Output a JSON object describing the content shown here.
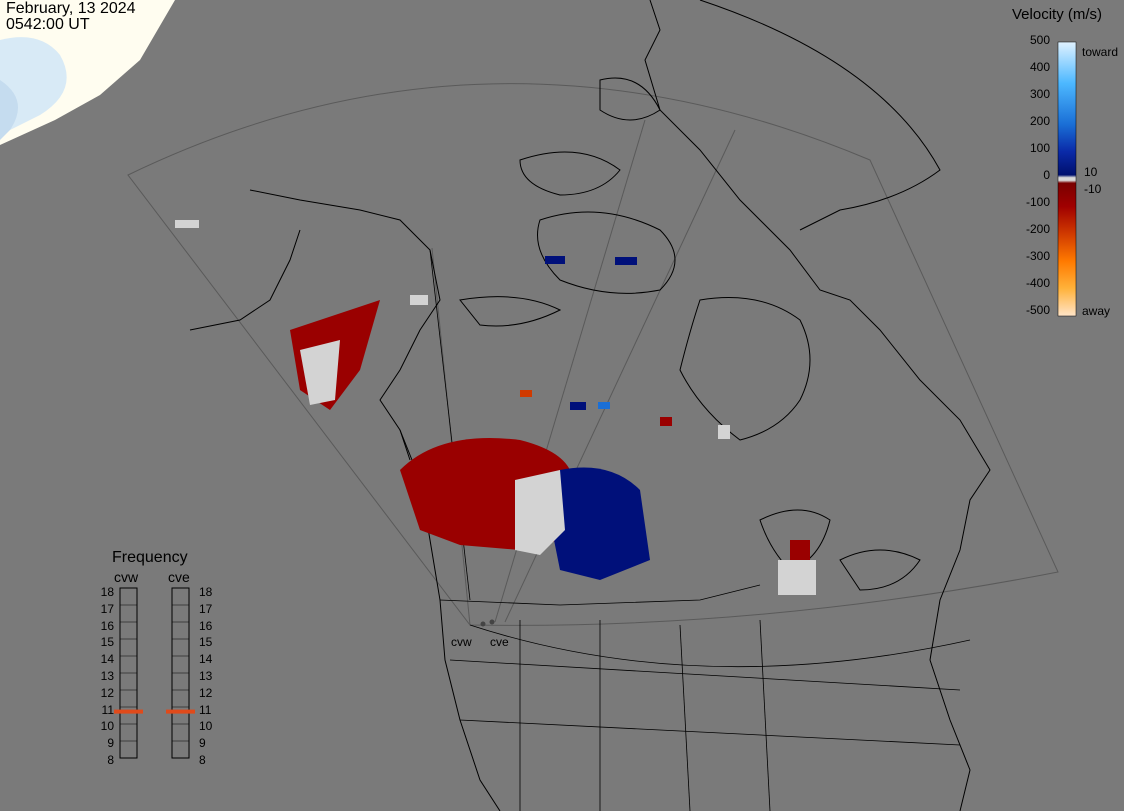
{
  "header": {
    "date": "February, 13 2024",
    "time": "0542:00 UT"
  },
  "colorbar": {
    "title": "Velocity (m/s)",
    "ticks": [
      "500",
      "400",
      "300",
      "200",
      "100",
      "0",
      "-100",
      "-200",
      "-300",
      "-400",
      "-500"
    ],
    "note_toward": "toward",
    "note_away": "away",
    "note_pos10": "10",
    "note_neg10": "-10",
    "range": [
      -500,
      500
    ],
    "stops": [
      {
        "v": 500,
        "color": "#e0f2ff"
      },
      {
        "v": 350,
        "color": "#4db8ff"
      },
      {
        "v": 200,
        "color": "#1a6fd6"
      },
      {
        "v": 100,
        "color": "#0a2aa8"
      },
      {
        "v": 10,
        "color": "#00106e"
      },
      {
        "v": 0,
        "color": "#d8d8d8"
      },
      {
        "v": -10,
        "color": "#7a0000"
      },
      {
        "v": -100,
        "color": "#a00000"
      },
      {
        "v": -200,
        "color": "#d03a00"
      },
      {
        "v": -300,
        "color": "#ff7a00"
      },
      {
        "v": -400,
        "color": "#ffb23b"
      },
      {
        "v": -500,
        "color": "#ffe4c8"
      }
    ]
  },
  "frequency": {
    "title": "Frequency",
    "radars": [
      {
        "name": "cvw",
        "value": 11
      },
      {
        "name": "cve",
        "value": 11
      }
    ],
    "labels": [
      "18",
      "17",
      "16",
      "15",
      "14",
      "13",
      "12",
      "11",
      "10",
      "9",
      "8"
    ],
    "marker_color": "#e04a1a"
  },
  "sites": {
    "west": "cvw",
    "east": "cve"
  },
  "colors": {
    "background": "#7a7a7a",
    "coast": "#000000",
    "night": "#fffdf0",
    "flow_away": "#9a0000",
    "flow_toward": "#00107a",
    "ground_scatter": "#d3d3d3"
  }
}
